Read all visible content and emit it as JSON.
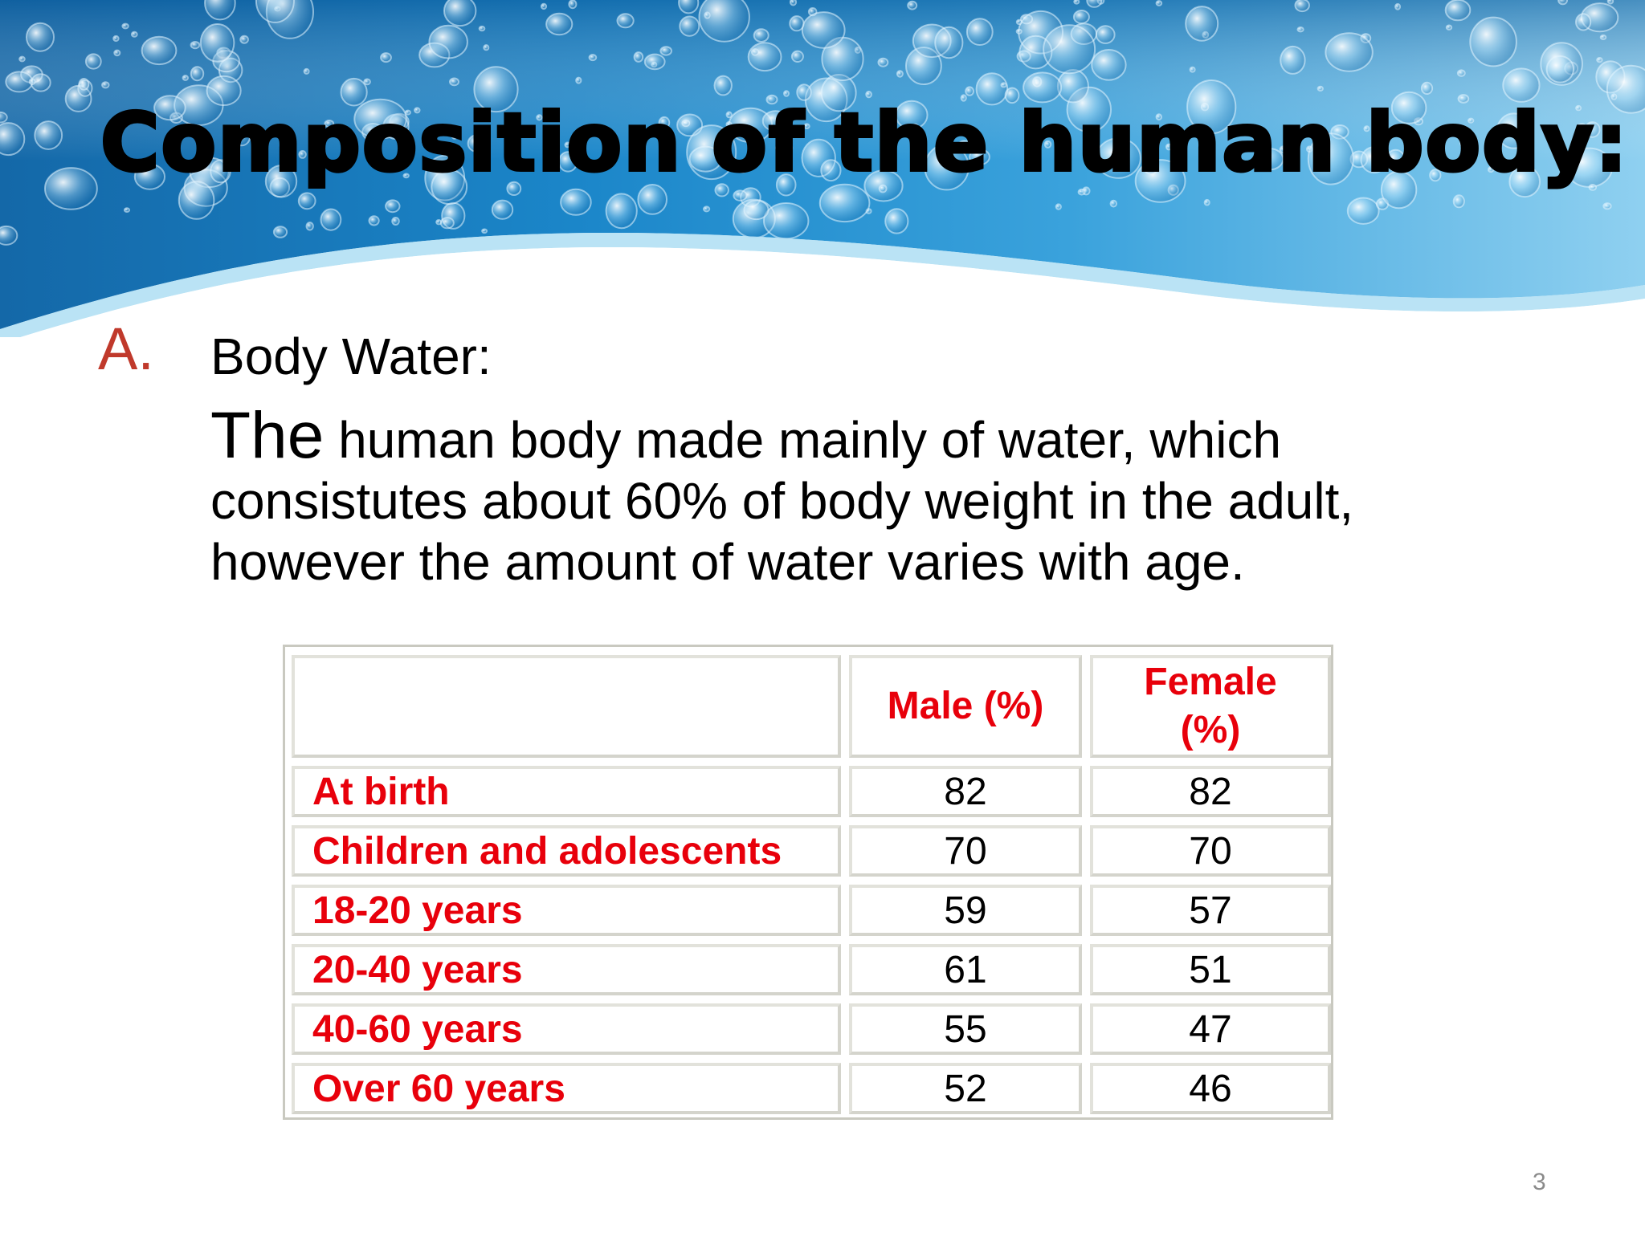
{
  "slide": {
    "title": "Composition of the human body:",
    "item_marker": "A.",
    "item_heading": "Body Water:",
    "paragraph_lead": "The",
    "paragraph_rest": " human body made mainly of water, which consistutes about 60% of body weight in the adult, however the amount of water varies with age.",
    "page_number": "3"
  },
  "table": {
    "headers": [
      "",
      "Male (%)",
      "Female (%)"
    ],
    "rows": [
      {
        "label": "At birth",
        "male": "82",
        "female": "82"
      },
      {
        "label": "Children and adolescents",
        "male": "70",
        "female": "70"
      },
      {
        "label": "18-20 years",
        "male": "59",
        "female": "57"
      },
      {
        "label": "20-40 years",
        "male": "61",
        "female": "51"
      },
      {
        "label": "40-60 years",
        "male": "55",
        "female": "47"
      },
      {
        "label": "Over 60 years",
        "male": "52",
        "female": "46"
      }
    ]
  },
  "colors": {
    "accent_red": "#e8000b",
    "marker_red": "#c0392b",
    "water_blue": "#1a7fc4"
  }
}
